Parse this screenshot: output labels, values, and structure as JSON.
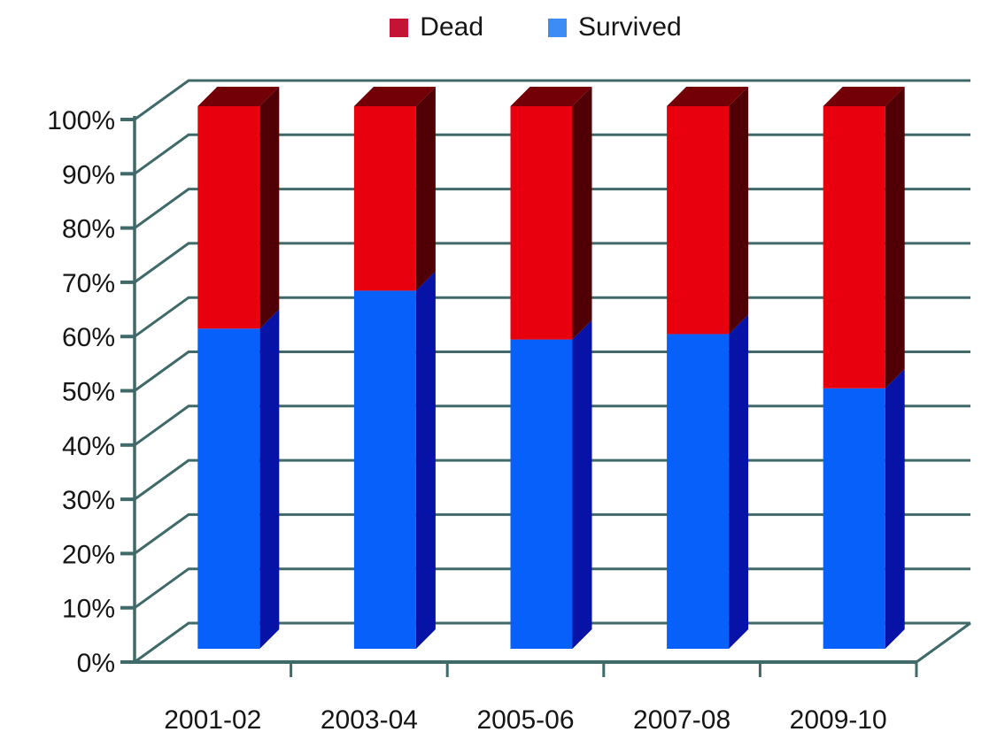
{
  "chart_data": {
    "type": "bar",
    "subtype": "3d-100-percent-stacked-column",
    "title": "",
    "categories": [
      "2001-02",
      "2003-04",
      "2005-06",
      "2007-08",
      "2009-10"
    ],
    "series": [
      {
        "name": "Dead",
        "values": [
          41,
          34,
          43,
          42,
          52
        ]
      },
      {
        "name": "Survived",
        "values": [
          59,
          66,
          57,
          58,
          48
        ]
      }
    ],
    "stack_order_bottom_to_top": [
      "Survived",
      "Dead"
    ],
    "xlabel": "",
    "ylabel": "",
    "ylim": [
      0,
      100
    ],
    "y_tick_step": 10,
    "y_tick_labels": [
      "0%",
      "10%",
      "20%",
      "30%",
      "40%",
      "50%",
      "60%",
      "70%",
      "80%",
      "90%",
      "100%"
    ],
    "legend_position": "top-center",
    "grid": true
  },
  "legend": {
    "items": [
      {
        "label": "Dead",
        "color": "#c41435"
      },
      {
        "label": "Survived",
        "color": "#3d8bf5"
      }
    ]
  },
  "colors": {
    "dead_front": "#e8000e",
    "dead_side": "#500004",
    "dead_top": "#730006",
    "survived_front": "#0760fa",
    "survived_side": "#0712a6",
    "survived_top": "#1e3fd0",
    "axis": "#40696a",
    "text": "#161616",
    "background": "#ffffff"
  }
}
